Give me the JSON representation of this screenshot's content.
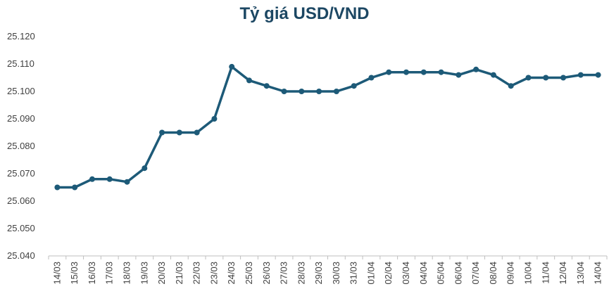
{
  "chart_data": {
    "type": "line",
    "title": "Tỷ giá USD/VND",
    "xlabel": "",
    "ylabel": "",
    "ylim": [
      25040,
      25120
    ],
    "yticks": [
      25040,
      25050,
      25060,
      25070,
      25080,
      25090,
      25100,
      25110,
      25120
    ],
    "ytick_labels": [
      "25.040",
      "25.050",
      "25.060",
      "25.070",
      "25.080",
      "25.090",
      "25.100",
      "25.110",
      "25.120"
    ],
    "grid": false,
    "legend": "none",
    "colors": {
      "line": "#1d5a78",
      "title": "#1c4763",
      "axis": "#bfbfbf"
    },
    "categories": [
      "14/03",
      "15/03",
      "16/03",
      "17/03",
      "18/03",
      "19/03",
      "20/03",
      "21/03",
      "22/03",
      "23/03",
      "24/03",
      "25/03",
      "26/03",
      "27/03",
      "28/03",
      "29/03",
      "30/03",
      "31/03",
      "01/04",
      "02/04",
      "03/04",
      "04/04",
      "05/04",
      "06/04",
      "07/04",
      "08/04",
      "09/04",
      "10/04",
      "11/04",
      "12/04",
      "13/04",
      "14/04"
    ],
    "series": [
      {
        "values": [
          25065,
          25065,
          25068,
          25068,
          25067,
          25072,
          25085,
          25085,
          25085,
          25090,
          25109,
          25104,
          25102,
          25100,
          25100,
          25100,
          25100,
          25102,
          25105,
          25107,
          25107,
          25107,
          25107,
          25106,
          25108,
          25106,
          25102,
          25105,
          25105,
          25105,
          25106,
          25106
        ]
      }
    ]
  }
}
